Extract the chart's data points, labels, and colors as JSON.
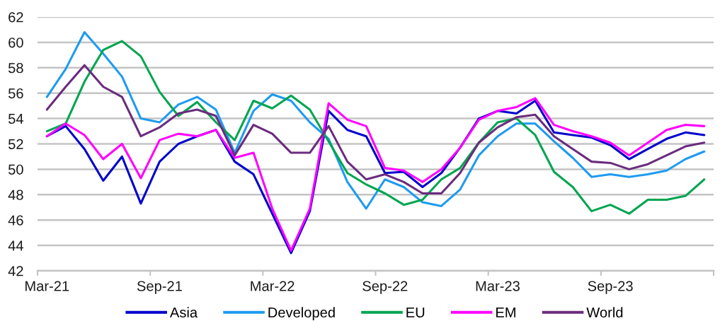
{
  "chart_data": {
    "type": "line",
    "categories": [
      "Mar-21",
      null,
      null,
      null,
      null,
      null,
      "Sep-21",
      null,
      null,
      null,
      null,
      null,
      "Mar-22",
      null,
      null,
      null,
      null,
      null,
      "Sep-22",
      null,
      null,
      null,
      null,
      null,
      "Mar-23",
      null,
      null,
      null,
      null,
      null,
      "Sep-23",
      null,
      null,
      null,
      null,
      null
    ],
    "series": [
      {
        "name": "Asia",
        "color": "#0000cc",
        "values": [
          52.6,
          53.4,
          51.6,
          49.1,
          51.0,
          47.3,
          50.6,
          52.0,
          52.6,
          53.1,
          50.6,
          49.6,
          46.5,
          43.4,
          46.7,
          54.6,
          53.1,
          52.6,
          49.7,
          49.8,
          48.6,
          49.7,
          51.7,
          54.0,
          54.6,
          54.4,
          55.4,
          52.9,
          52.7,
          52.5,
          51.9,
          50.8,
          51.6,
          52.4,
          52.9,
          52.7
        ]
      },
      {
        "name": "Developed",
        "color": "#1e9bf0",
        "values": [
          55.7,
          57.9,
          60.8,
          59.1,
          57.3,
          54.0,
          53.7,
          55.1,
          55.7,
          54.7,
          51.3,
          54.6,
          55.9,
          55.4,
          53.7,
          52.4,
          49.0,
          46.9,
          49.2,
          48.6,
          47.4,
          47.1,
          48.4,
          51.1,
          52.6,
          53.6,
          53.6,
          52.2,
          50.9,
          49.4,
          49.6,
          49.4,
          49.6,
          49.9,
          50.8,
          51.4
        ]
      },
      {
        "name": "EU",
        "color": "#00a550",
        "values": [
          53.0,
          53.6,
          56.9,
          59.4,
          60.1,
          58.9,
          56.1,
          54.2,
          55.3,
          53.7,
          52.3,
          55.4,
          54.8,
          55.8,
          54.7,
          52.2,
          49.7,
          48.8,
          48.1,
          47.2,
          47.6,
          49.2,
          50.1,
          52.1,
          53.7,
          54.0,
          52.7,
          49.8,
          48.6,
          46.7,
          47.2,
          46.5,
          47.6,
          47.6,
          47.9,
          49.2
        ]
      },
      {
        "name": "EM",
        "color": "#ff00ff",
        "values": [
          52.6,
          53.6,
          52.7,
          50.8,
          52.0,
          49.3,
          52.3,
          52.8,
          52.6,
          53.1,
          50.9,
          51.3,
          46.9,
          43.6,
          46.9,
          55.2,
          53.9,
          53.4,
          50.1,
          49.9,
          49.0,
          50.0,
          51.7,
          53.9,
          54.6,
          54.9,
          55.6,
          53.5,
          53.0,
          52.6,
          52.1,
          51.1,
          52.1,
          53.1,
          53.5,
          53.4
        ]
      },
      {
        "name": "World",
        "color": "#6b2c7e",
        "values": [
          54.7,
          56.5,
          58.2,
          56.5,
          55.7,
          52.6,
          53.3,
          54.4,
          54.7,
          54.2,
          51.1,
          53.5,
          52.8,
          51.3,
          51.3,
          53.4,
          50.6,
          49.2,
          49.6,
          49.0,
          48.1,
          48.1,
          49.7,
          52.1,
          53.3,
          54.1,
          54.3,
          52.6,
          51.6,
          50.6,
          50.5,
          50.0,
          50.4,
          51.1,
          51.8,
          52.1
        ]
      }
    ],
    "ylim": [
      42,
      62
    ],
    "yticks": [
      42,
      44,
      46,
      48,
      50,
      52,
      54,
      56,
      58,
      60,
      62
    ],
    "grid": "y",
    "legend": "bottom"
  }
}
